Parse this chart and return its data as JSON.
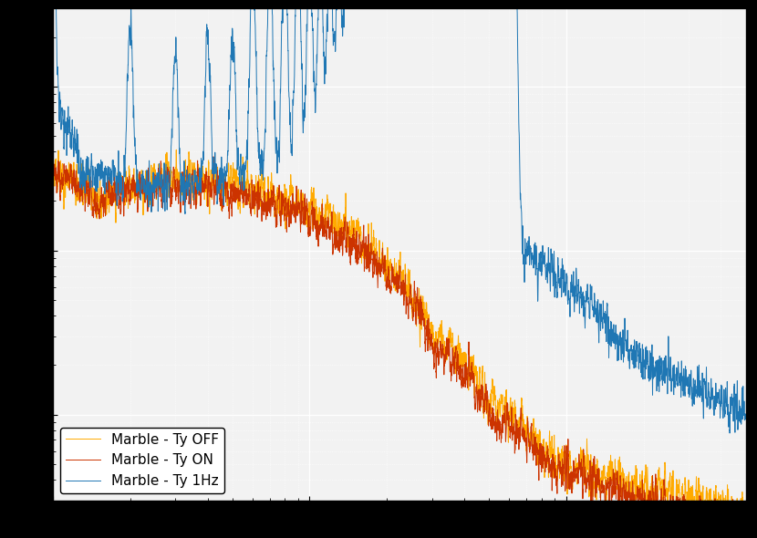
{
  "title": "",
  "xlabel": "",
  "ylabel": "",
  "xlim": [
    1,
    500
  ],
  "ylim": [
    3e-09,
    3e-06
  ],
  "background_color": "#f2f2f2",
  "grid_color": "#ffffff",
  "color_1hz": "#1f77b4",
  "color_on": "#cc3300",
  "color_off": "#ffaa00",
  "legend_labels": [
    "Marble - Ty 1Hz",
    "Marble - Ty ON",
    "Marble - Ty OFF"
  ],
  "legend_loc": "lower left",
  "linewidth_1hz": 0.7,
  "linewidth_on": 0.7,
  "linewidth_off": 0.7
}
